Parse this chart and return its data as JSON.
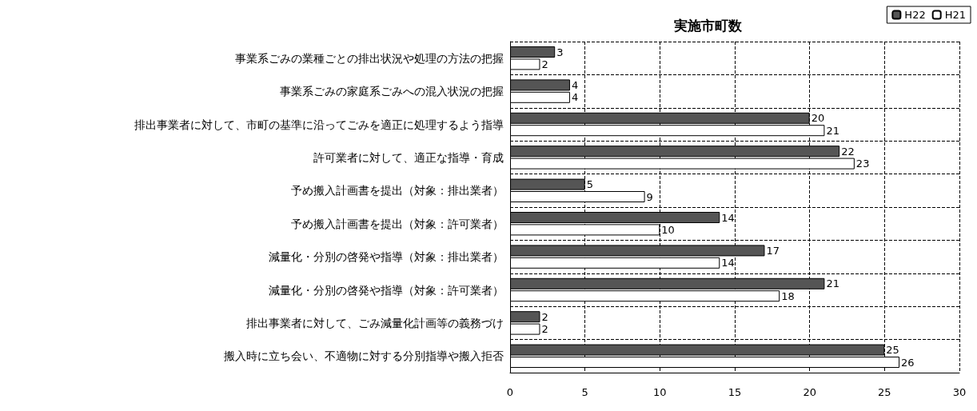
{
  "chart_data": {
    "type": "bar",
    "orientation": "horizontal",
    "title": "実施市町数",
    "categories": [
      "事業系ごみの業種ごとの排出状況や処理の方法の把握",
      "事業系ごみの家庭系ごみへの混入状況の把握",
      "排出事業者に対して、市町の基準に沿ってごみを適正に処理するよう指導",
      "許可業者に対して、適正な指導・育成",
      "予め搬入計画書を提出（対象：排出業者）",
      "予め搬入計画書を提出（対象：許可業者）",
      "減量化・分別の啓発や指導（対象：排出業者）",
      "減量化・分別の啓発や指導（対象：許可業者）",
      "排出事業者に対して、ごみ減量化計画等の義務づけ",
      "搬入時に立ち会い、不適物に対する分別指導や搬入拒否"
    ],
    "series": [
      {
        "name": "H22",
        "color": "#555555",
        "values": [
          3,
          4,
          20,
          22,
          5,
          14,
          17,
          21,
          2,
          25
        ]
      },
      {
        "name": "H21",
        "color": "#ffffff",
        "values": [
          2,
          4,
          21,
          23,
          9,
          10,
          14,
          18,
          2,
          26
        ]
      }
    ],
    "xlim": [
      0,
      30
    ],
    "xticks": [
      0,
      5,
      10,
      15,
      20,
      25,
      30
    ],
    "grid": true,
    "line_style": "dashed",
    "legend": "top right",
    "data_labels": true
  }
}
